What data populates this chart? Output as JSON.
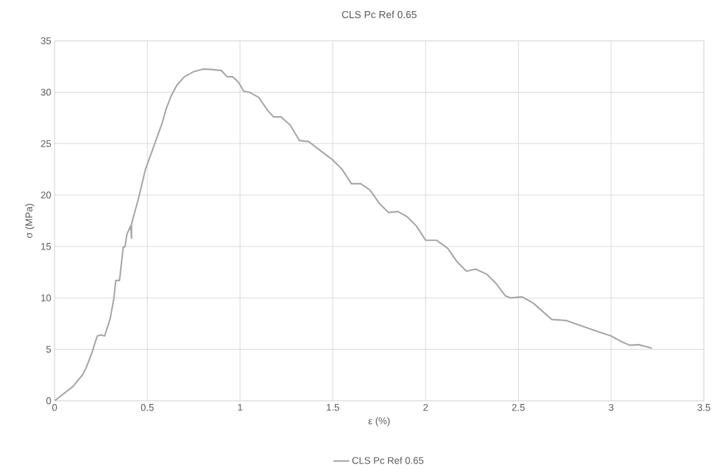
{
  "chart_data": {
    "type": "line",
    "title": "CLS Pc Ref 0.65",
    "xlabel": "ε (%)",
    "ylabel": "σ (MPa)",
    "xlim": [
      0,
      3.5
    ],
    "ylim": [
      0,
      35
    ],
    "xticks": [
      0,
      0.5,
      1,
      1.5,
      2,
      2.5,
      3,
      3.5
    ],
    "yticks": [
      0,
      5,
      10,
      15,
      20,
      25,
      30,
      35
    ],
    "grid": true,
    "legend": "bottom",
    "series": [
      {
        "name": "CLS Pc Ref 0.65",
        "color": "#a5a5a5",
        "x": [
          0,
          0.1,
          0.15,
          0.17,
          0.2,
          0.23,
          0.25,
          0.27,
          0.3,
          0.32,
          0.33,
          0.35,
          0.37,
          0.38,
          0.39,
          0.41,
          0.415,
          0.415,
          0.43,
          0.45,
          0.47,
          0.49,
          0.52,
          0.55,
          0.58,
          0.6,
          0.63,
          0.66,
          0.7,
          0.75,
          0.8,
          0.85,
          0.9,
          0.93,
          0.96,
          0.99,
          1.02,
          1.05,
          1.1,
          1.15,
          1.18,
          1.22,
          1.27,
          1.32,
          1.37,
          1.42,
          1.5,
          1.55,
          1.6,
          1.65,
          1.7,
          1.75,
          1.8,
          1.85,
          1.9,
          1.95,
          2.0,
          2.06,
          2.12,
          2.17,
          2.22,
          2.27,
          2.33,
          2.38,
          2.43,
          2.46,
          2.52,
          2.58,
          2.63,
          2.68,
          2.76,
          2.82,
          2.9,
          3.0,
          3.05,
          3.1,
          3.15,
          3.22
        ],
        "values": [
          0,
          1.4,
          2.5,
          3.2,
          4.6,
          6.3,
          6.4,
          6.3,
          8,
          10,
          11.7,
          11.7,
          14.9,
          15,
          16.2,
          17,
          15.8,
          17.2,
          18.2,
          19.5,
          21,
          22.5,
          24,
          25.5,
          27,
          28.3,
          29.7,
          30.7,
          31.5,
          32,
          32.25,
          32.2,
          32.1,
          31.5,
          31.5,
          31,
          30.1,
          30,
          29.5,
          28.2,
          27.6,
          27.6,
          26.8,
          25.3,
          25.2,
          24.5,
          23.4,
          22.5,
          21.1,
          21.1,
          20.5,
          19.2,
          18.3,
          18.4,
          17.9,
          17,
          15.6,
          15.6,
          14.8,
          13.5,
          12.6,
          12.8,
          12.3,
          11.4,
          10.2,
          10,
          10.1,
          9.5,
          8.7,
          7.9,
          7.8,
          7.4,
          6.9,
          6.3,
          5.8,
          5.4,
          5.45,
          5.1
        ]
      }
    ]
  }
}
